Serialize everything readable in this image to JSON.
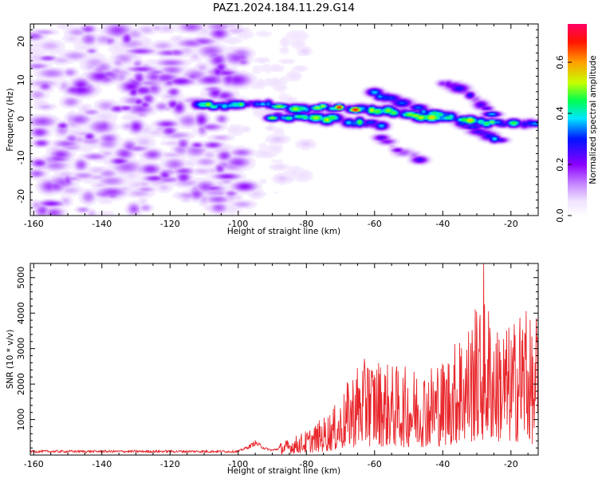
{
  "title": "PAZ1.2024.184.11.29.G14",
  "chart_data": [
    {
      "type": "heatmap",
      "xlabel": "Height of straight line (km)",
      "ylabel": "Frequency (Hz)",
      "xlim": [
        -161,
        -12
      ],
      "ylim": [
        -25,
        24.5
      ],
      "x_ticks": [
        -160,
        -140,
        -120,
        -100,
        -80,
        -60,
        -40,
        -20
      ],
      "y_ticks": [
        -20,
        -10,
        0,
        10,
        20
      ],
      "colorbar": {
        "label": "Normalized spectral amplitude",
        "range": [
          0,
          0.75
        ],
        "ticks": [
          0.0,
          0.2,
          0.4,
          0.6
        ],
        "colormap": "gist_rainbow_r",
        "low_color": "#ffffff",
        "high_color": "#ff0066"
      },
      "features": [
        {
          "type": "noise",
          "x_range": [
            -160,
            -98
          ],
          "freq_range": [
            -25,
            24
          ],
          "amplitude": 0.12
        },
        {
          "type": "noise",
          "x_range": [
            -95,
            -80
          ],
          "freq_range": [
            -22,
            22
          ],
          "amplitude": 0.05
        },
        {
          "type": "ridge",
          "x": [
            -112,
            -100,
            -95,
            -85,
            -75,
            -65,
            -55,
            -45,
            -35,
            -25,
            -15,
            -12
          ],
          "freq": [
            3.5,
            3.5,
            4,
            2.5,
            3,
            2.5,
            2,
            0.5,
            -0.5,
            -1,
            -1.5,
            -1.5
          ],
          "amplitude": 0.45,
          "peak": 0.72
        },
        {
          "type": "ridge",
          "x": [
            -90,
            -80,
            -72,
            -65,
            -58
          ],
          "freq": [
            0.5,
            0.3,
            0,
            -1,
            -1.5
          ],
          "amplitude": 0.4
        },
        {
          "type": "ridge",
          "x": [
            -60,
            -52,
            -45,
            -38,
            -30,
            -22
          ],
          "freq": [
            6.5,
            4,
            2,
            0.5,
            -3,
            -6
          ],
          "amplitude": 0.35
        },
        {
          "type": "ridge",
          "x": [
            -40,
            -33,
            -28,
            -24
          ],
          "freq": [
            9,
            7,
            3,
            0
          ],
          "amplitude": 0.3
        },
        {
          "type": "ridge",
          "x": [
            -58,
            -55,
            -50,
            -45
          ],
          "freq": [
            -5,
            -7,
            -9,
            -11
          ],
          "amplitude": 0.2
        }
      ]
    },
    {
      "type": "line",
      "xlabel": "Height of straight line (km)",
      "ylabel": "SNR (10 * v/v)",
      "xlim": [
        -161,
        -12
      ],
      "ylim": [
        0,
        5400
      ],
      "x_ticks": [
        -160,
        -140,
        -120,
        -100,
        -80,
        -60,
        -40,
        -20
      ],
      "y_ticks": [
        1000,
        2000,
        3000,
        4000,
        5000
      ],
      "color": "#e8272c",
      "x_step": 0.13,
      "envelope": {
        "x": [
          -161,
          -100,
          -97,
          -95,
          -92,
          -90,
          -85,
          -80,
          -75,
          -70,
          -67,
          -65,
          -60,
          -55,
          -50,
          -45,
          -40,
          -35,
          -30,
          -27,
          -25,
          -20,
          -17,
          -15,
          -13,
          -12
        ],
        "y": [
          120,
          120,
          250,
          380,
          200,
          150,
          280,
          420,
          650,
          950,
          1400,
          1600,
          1700,
          1550,
          1500,
          1550,
          1650,
          2100,
          2500,
          2700,
          2400,
          2200,
          2600,
          2500,
          1900,
          2200
        ]
      },
      "peaks": [
        {
          "x": -28.0,
          "y": 5400
        },
        {
          "x": -30.5,
          "y": 4100
        },
        {
          "x": -15.5,
          "y": 4050
        },
        {
          "x": -35.0,
          "y": 3150
        },
        {
          "x": -62.0,
          "y": 2450
        },
        {
          "x": -41.5,
          "y": 2450
        },
        {
          "x": -12.5,
          "y": 3850
        },
        {
          "x": -24.0,
          "y": 3450
        },
        {
          "x": -17.5,
          "y": 3400
        }
      ]
    }
  ]
}
